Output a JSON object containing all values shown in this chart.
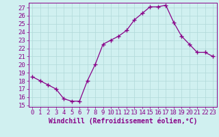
{
  "x": [
    0,
    1,
    2,
    3,
    4,
    5,
    6,
    7,
    8,
    9,
    10,
    11,
    12,
    13,
    14,
    15,
    16,
    17,
    18,
    19,
    20,
    21,
    22,
    23
  ],
  "y": [
    18.5,
    18.0,
    17.5,
    17.0,
    15.8,
    15.5,
    15.5,
    18.0,
    20.0,
    22.5,
    23.0,
    23.5,
    24.2,
    25.5,
    26.3,
    27.1,
    27.1,
    27.3,
    25.2,
    23.5,
    22.5,
    21.5,
    21.5,
    21.0
  ],
  "line_color": "#880088",
  "marker": "+",
  "bg_color": "#d0f0f0",
  "grid_color": "#b0d8d8",
  "xlabel": "Windchill (Refroidissement éolien,°C)",
  "ylim": [
    14.8,
    27.6
  ],
  "xlim": [
    -0.5,
    23.5
  ],
  "yticks": [
    15,
    16,
    17,
    18,
    19,
    20,
    21,
    22,
    23,
    24,
    25,
    26,
    27
  ],
  "xticks": [
    0,
    1,
    2,
    3,
    4,
    5,
    6,
    7,
    8,
    9,
    10,
    11,
    12,
    13,
    14,
    15,
    16,
    17,
    18,
    19,
    20,
    21,
    22,
    23
  ],
  "tick_color": "#880088",
  "label_color": "#880088",
  "axis_color": "#880088",
  "font_size": 6.5,
  "xlabel_fontsize": 7.0
}
